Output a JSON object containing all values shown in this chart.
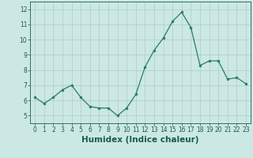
{
  "x": [
    0,
    1,
    2,
    3,
    4,
    5,
    6,
    7,
    8,
    9,
    10,
    11,
    12,
    13,
    14,
    15,
    16,
    17,
    18,
    19,
    20,
    21,
    22,
    23
  ],
  "y": [
    6.2,
    5.8,
    6.2,
    6.7,
    7.0,
    6.2,
    5.6,
    5.5,
    5.5,
    5.0,
    5.5,
    6.4,
    8.2,
    9.3,
    10.1,
    11.2,
    11.8,
    10.8,
    8.3,
    8.6,
    8.6,
    7.4,
    7.5,
    7.1
  ],
  "xlabel": "Humidex (Indice chaleur)",
  "xlim": [
    -0.5,
    23.5
  ],
  "ylim": [
    4.5,
    12.5
  ],
  "yticks": [
    5,
    6,
    7,
    8,
    9,
    10,
    11,
    12
  ],
  "xticks": [
    0,
    1,
    2,
    3,
    4,
    5,
    6,
    7,
    8,
    9,
    10,
    11,
    12,
    13,
    14,
    15,
    16,
    17,
    18,
    19,
    20,
    21,
    22,
    23
  ],
  "line_color": "#2a7a6a",
  "marker_color": "#2a7a6a",
  "bg_color": "#cce8e4",
  "grid_color": "#aacccc",
  "xlabel_color": "#1a5a50",
  "tick_color": "#1a5a50",
  "tick_fontsize": 5.5,
  "xlabel_fontsize": 7.5
}
